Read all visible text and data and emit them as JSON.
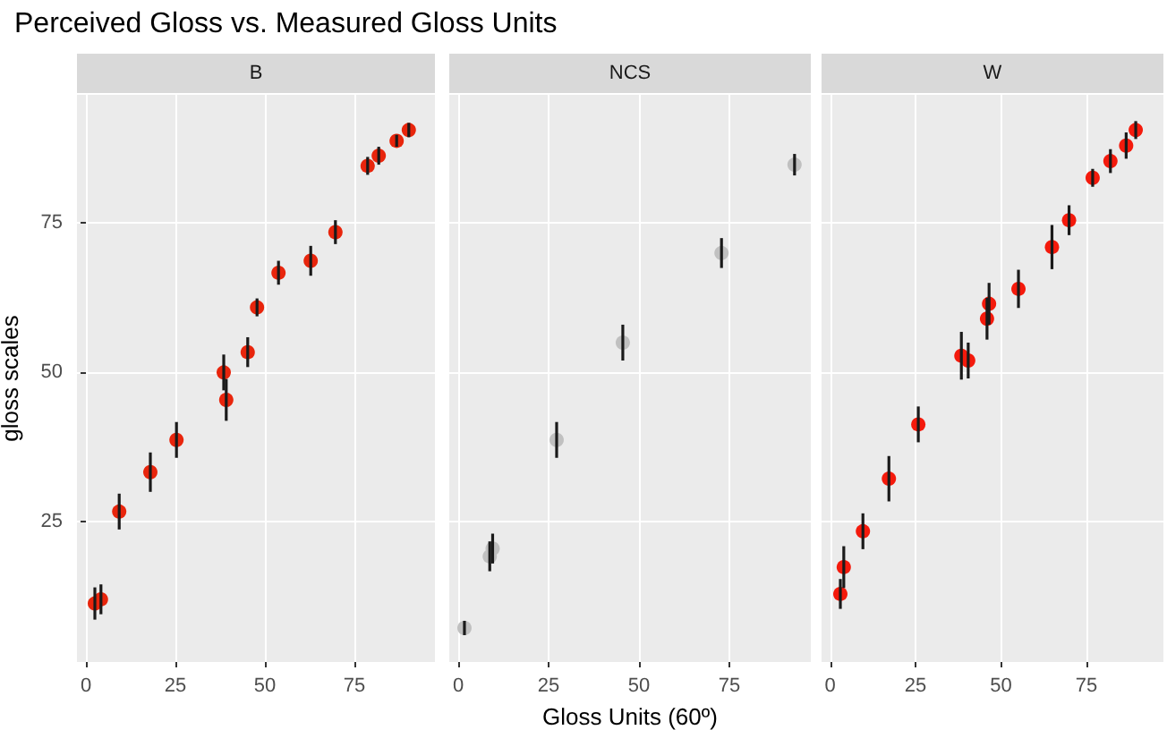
{
  "chart_data": [
    {
      "type": "scatter",
      "title": "Perceived Gloss vs. Measured Gloss Units",
      "subtitle": "B",
      "ylabel": "gloss scales",
      "xlim": [
        -2.5,
        97.5
      ],
      "xticks": [
        0,
        25,
        50,
        75
      ],
      "ylim": [
        1.5,
        96.5
      ],
      "yticks": [
        25,
        50,
        75
      ],
      "grid": true,
      "marker": "circle",
      "x": [
        2.5,
        4.2,
        9.3,
        18,
        25.3,
        38.5,
        39.2,
        45.2,
        47.8,
        53.8,
        62.8,
        69.7,
        78.7,
        81.8,
        86.8,
        90.2
      ],
      "series": [
        {
          "color": "#e8250c",
          "values": [
            11.3,
            12,
            26.7,
            33.3,
            38.7,
            50,
            45.4,
            53.4,
            60.9,
            66.7,
            68.7,
            73.5,
            84.6,
            86.3,
            88.8,
            90.6
          ],
          "errors": [
            2.7,
            2.5,
            3,
            3.3,
            3,
            3,
            3.5,
            2.5,
            1.5,
            2,
            2.5,
            2,
            1.5,
            1.5,
            1,
            1.2
          ]
        }
      ]
    },
    {
      "type": "scatter",
      "subtitle": "NCS",
      "xlabel": "Gloss Units (60º)",
      "xlim": [
        -2.5,
        97.5
      ],
      "xticks": [
        0,
        25,
        50,
        75
      ],
      "ylim": [
        1.5,
        96.5
      ],
      "yticks": [
        25,
        50,
        75
      ],
      "grid": true,
      "marker": "circle",
      "tick_labels": "x",
      "x": [
        1.7,
        8.7,
        9.5,
        27.2,
        45.5,
        72.8,
        93
      ],
      "series": [
        {
          "color": "#c0c0c0",
          "values": [
            7.2,
            19.2,
            20.5,
            38.7,
            55,
            70,
            84.8
          ],
          "errors": [
            1.2,
            2.5,
            2.5,
            3,
            3,
            2.5,
            1.8
          ]
        }
      ]
    },
    {
      "type": "scatter",
      "subtitle": "W",
      "xlim": [
        -2.5,
        97.5
      ],
      "xticks": [
        0,
        25,
        50,
        75
      ],
      "ylim": [
        1.5,
        96.5
      ],
      "yticks": [
        25,
        50,
        75
      ],
      "grid": true,
      "marker": "circle",
      "tick_labels": "x",
      "x": [
        3,
        4,
        9.6,
        17.2,
        25.8,
        38.4,
        40.4,
        45.9,
        46.5,
        55.1,
        64.9,
        69.9,
        76.8,
        82,
        86.6,
        89.4
      ],
      "series": [
        {
          "color": "#f41a0c",
          "values": [
            12.9,
            17.4,
            23.4,
            32.2,
            41.3,
            52.8,
            52,
            59,
            61.5,
            64,
            71,
            75.5,
            82.6,
            85.4,
            88,
            90.6
          ],
          "errors": [
            2.5,
            3.5,
            3,
            3.8,
            3,
            4,
            3,
            3.5,
            3.5,
            3.2,
            3.7,
            2.5,
            1.5,
            2,
            2.2,
            1.5
          ]
        }
      ]
    }
  ]
}
